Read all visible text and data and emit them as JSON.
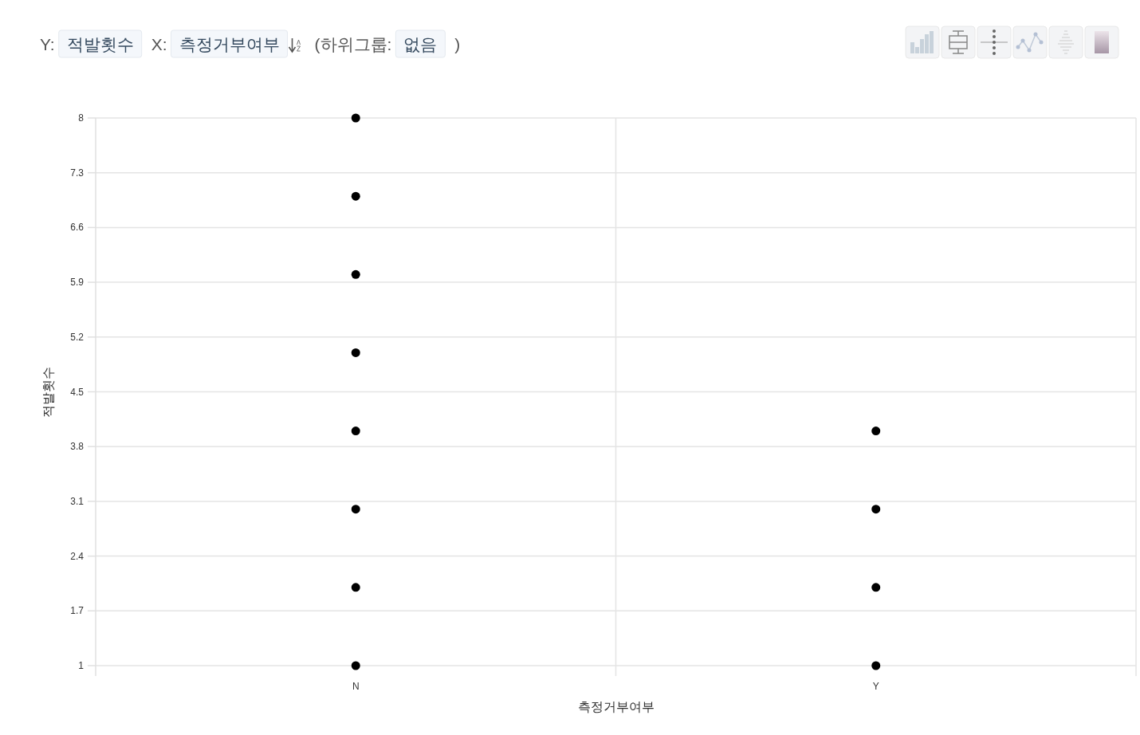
{
  "chart_data": {
    "type": "scatter",
    "title": "Y: 적발횟수 X: 측정거부여부 (하위그룹: 없음 )",
    "xlabel": "측정거부여부",
    "ylabel": "적발횟수",
    "categories": [
      "N",
      "Y"
    ],
    "series": [
      {
        "color": "#000000",
        "x": [
          "N",
          "N",
          "N",
          "N",
          "N",
          "N",
          "N",
          "N",
          "Y",
          "Y",
          "Y",
          "Y"
        ],
        "values": [
          1,
          2,
          3,
          4,
          5,
          6,
          7,
          8,
          1,
          2,
          3,
          4
        ]
      }
    ],
    "ylim": [
      1,
      8
    ],
    "yticks": [
      1,
      1.7,
      2.4,
      3.1,
      3.8,
      4.5,
      5.2,
      5.9,
      6.6,
      7.3,
      8
    ],
    "grid": true,
    "marker": "circle"
  }
}
